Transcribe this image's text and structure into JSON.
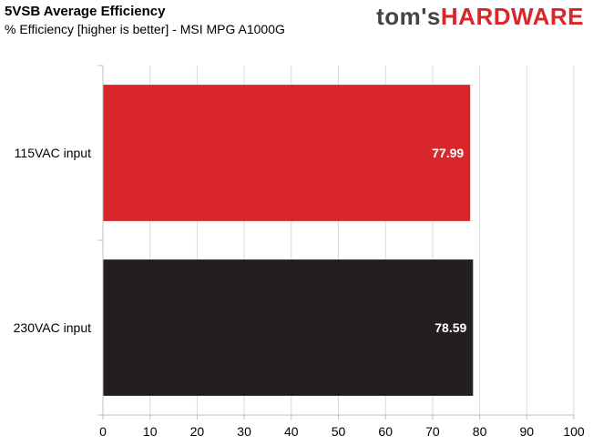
{
  "header": {
    "title": "5VSB Average Efficiency",
    "subtitle": "% Efficiency [higher is better] - MSI MPG A1000G",
    "logo_part1": "tom's",
    "logo_part2": "HARDWARE"
  },
  "colors": {
    "red": "#d8262b",
    "black": "#231f20",
    "grid": "#d9d9d9",
    "axis": "#bfbfbf"
  },
  "chart_data": {
    "type": "bar",
    "orientation": "horizontal",
    "title": "5VSB Average Efficiency",
    "subtitle": "% Efficiency [higher is better] - MSI MPG A1000G",
    "categories": [
      "115VAC input",
      "230VAC input"
    ],
    "values": [
      77.99,
      78.59
    ],
    "value_labels": [
      "77.99",
      "78.59"
    ],
    "bar_colors": [
      "#d8262b",
      "#231f20"
    ],
    "xlim": [
      0,
      100
    ],
    "xticks": [
      0,
      10,
      20,
      30,
      40,
      50,
      60,
      70,
      80,
      90,
      100
    ],
    "xlabel": "",
    "ylabel": "",
    "grid": true
  }
}
